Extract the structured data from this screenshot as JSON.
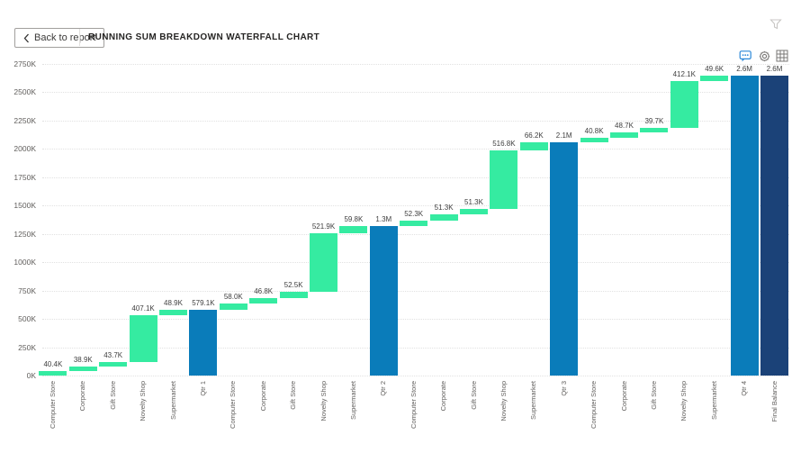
{
  "header": {
    "back_button": {
      "label": "Back to report"
    },
    "title": "RUNNING SUM BREAKDOWN WATERFALL CHART"
  },
  "visual_toolbar": {
    "icons": [
      {
        "name": "comments-icon",
        "color": "#2b88d8"
      },
      {
        "name": "settings-icon",
        "color": "#797775"
      },
      {
        "name": "grid-icon",
        "color": "#797775"
      }
    ]
  },
  "chart_data": {
    "type": "bar",
    "subtype": "waterfall",
    "title": "RUNNING SUM BREAKDOWN WATERFALL CHART",
    "value_unit": "thousands",
    "grid": "dotted-horizontal",
    "legend": "none",
    "colors": {
      "increase": "#35EBA1",
      "subtotal": "#0A7CBA",
      "final": "#1B4278"
    },
    "y_axis": {
      "min": 0,
      "max": 2750,
      "tick_step": 250,
      "ticks": [
        "0K",
        "250K",
        "500K",
        "750K",
        "1000K",
        "1250K",
        "1500K",
        "1750K",
        "2000K",
        "2250K",
        "2500K",
        "2750K"
      ]
    },
    "bars": [
      {
        "category": "Computer Store",
        "value": 40.4,
        "display": "40.4K",
        "kind": "increase"
      },
      {
        "category": "Corporate",
        "value": 38.9,
        "display": "38.9K",
        "kind": "increase"
      },
      {
        "category": "Gift Store",
        "value": 43.7,
        "display": "43.7K",
        "kind": "increase"
      },
      {
        "category": "Novelty Shop",
        "value": 407.1,
        "display": "407.1K",
        "kind": "increase"
      },
      {
        "category": "Supermarket",
        "value": 48.9,
        "display": "48.9K",
        "kind": "increase"
      },
      {
        "category": "Qtr 1",
        "value": 579.1,
        "display": "579.1K",
        "kind": "subtotal"
      },
      {
        "category": "Computer Store",
        "value": 58.0,
        "display": "58.0K",
        "kind": "increase"
      },
      {
        "category": "Corporate",
        "value": 46.8,
        "display": "46.8K",
        "kind": "increase"
      },
      {
        "category": "Gift Store",
        "value": 52.5,
        "display": "52.5K",
        "kind": "increase"
      },
      {
        "category": "Novelty Shop",
        "value": 521.9,
        "display": "521.9K",
        "kind": "increase"
      },
      {
        "category": "Supermarket",
        "value": 59.8,
        "display": "59.8K",
        "kind": "increase"
      },
      {
        "category": "Qtr 2",
        "value": 1318.1,
        "display": "1.3M",
        "kind": "subtotal"
      },
      {
        "category": "Computer Store",
        "value": 52.3,
        "display": "52.3K",
        "kind": "increase"
      },
      {
        "category": "Corporate",
        "value": 51.3,
        "display": "51.3K",
        "kind": "increase"
      },
      {
        "category": "Gift Store",
        "value": 51.3,
        "display": "51.3K",
        "kind": "increase"
      },
      {
        "category": "Novelty Shop",
        "value": 516.8,
        "display": "516.8K",
        "kind": "increase"
      },
      {
        "category": "Supermarket",
        "value": 66.2,
        "display": "66.2K",
        "kind": "increase"
      },
      {
        "category": "Qtr 3",
        "value": 2056.0,
        "display": "2.1M",
        "kind": "subtotal"
      },
      {
        "category": "Computer Store",
        "value": 40.8,
        "display": "40.8K",
        "kind": "increase"
      },
      {
        "category": "Corporate",
        "value": 48.7,
        "display": "48.7K",
        "kind": "increase"
      },
      {
        "category": "Gift Store",
        "value": 39.7,
        "display": "39.7K",
        "kind": "increase"
      },
      {
        "category": "Novelty Shop",
        "value": 412.1,
        "display": "412.1K",
        "kind": "increase"
      },
      {
        "category": "Supermarket",
        "value": 49.6,
        "display": "49.6K",
        "kind": "increase"
      },
      {
        "category": "Qtr 4",
        "value": 2646.9,
        "display": "2.6M",
        "kind": "subtotal"
      },
      {
        "category": "Final Balance",
        "value": 2646.9,
        "display": "2.6M",
        "kind": "final"
      }
    ]
  }
}
